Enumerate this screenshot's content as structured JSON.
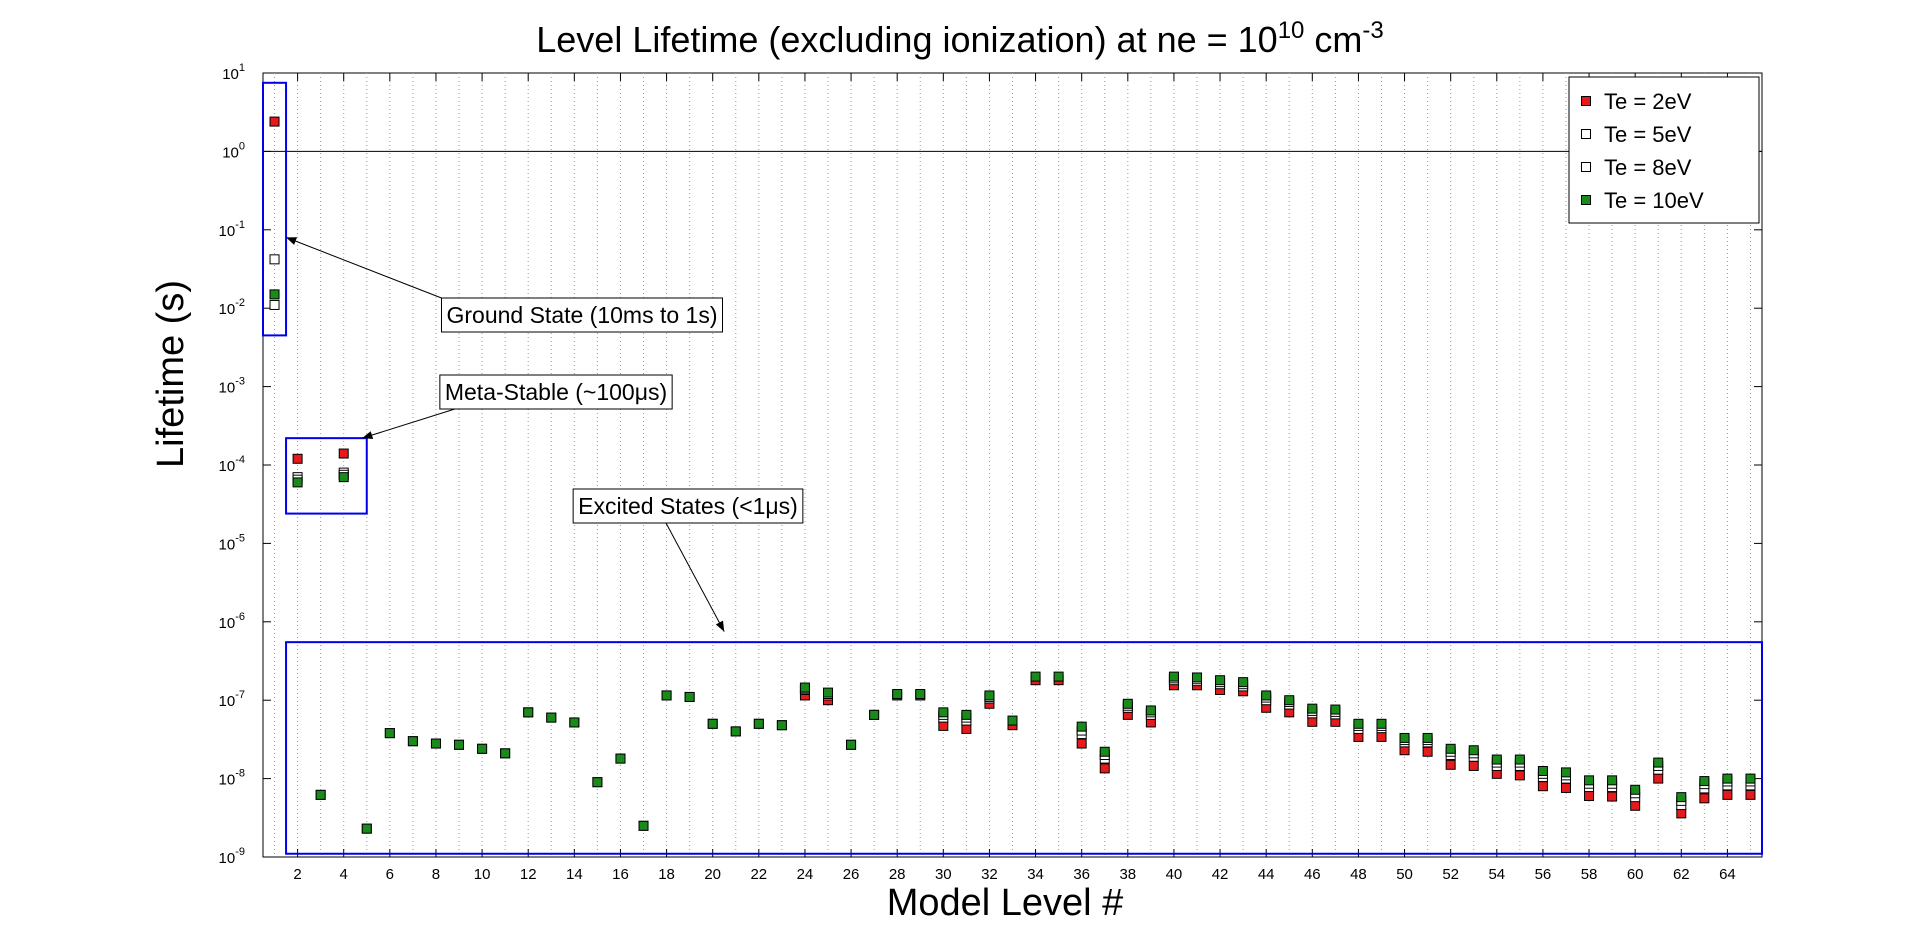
{
  "chart_data": {
    "type": "scatter",
    "title": {
      "prefix": "Level Lifetime (excluding ionization) at ne = 10",
      "exponent": "10",
      "units_prefix": " cm",
      "units_exponent": "-3"
    },
    "xlabel": "Model Level #",
    "ylabel": "Lifetime (s)",
    "xlim": [
      0.5,
      65.5
    ],
    "ylim": [
      1e-09,
      10
    ],
    "y_scale": "log",
    "x_ticks": [
      2,
      4,
      6,
      8,
      10,
      12,
      14,
      16,
      18,
      20,
      22,
      24,
      26,
      28,
      30,
      32,
      34,
      36,
      38,
      40,
      42,
      44,
      46,
      48,
      50,
      52,
      54,
      56,
      58,
      60,
      62,
      64
    ],
    "x_tick_labels": [
      "2",
      "4",
      "6",
      "8",
      "10",
      "12",
      "14",
      "16",
      "18",
      "20",
      "22",
      "24",
      "26",
      "28",
      "30",
      "32",
      "34",
      "36",
      "38",
      "40",
      "42",
      "44",
      "46",
      "48",
      "50",
      "52",
      "54",
      "56",
      "58",
      "60",
      "62",
      "64"
    ],
    "y_ticks": [
      {
        "base": "10",
        "exp": "1",
        "value": 10
      },
      {
        "base": "10",
        "exp": "0",
        "value": 1
      },
      {
        "base": "10",
        "exp": "-1",
        "value": 0.1
      },
      {
        "base": "10",
        "exp": "-2",
        "value": 0.01
      },
      {
        "base": "10",
        "exp": "-3",
        "value": 0.001
      },
      {
        "base": "10",
        "exp": "-4",
        "value": 0.0001
      },
      {
        "base": "10",
        "exp": "-5",
        "value": 1e-05
      },
      {
        "base": "10",
        "exp": "-6",
        "value": 1e-06
      },
      {
        "base": "10",
        "exp": "-7",
        "value": 1e-07
      },
      {
        "base": "10",
        "exp": "-8",
        "value": 1e-08
      },
      {
        "base": "10",
        "exp": "-9",
        "value": 1e-09
      }
    ],
    "grid": "x-dotted",
    "reference_line_y": 1,
    "legend_position": "top-right",
    "series": [
      {
        "name": "Te = 2eV",
        "color": "#e41a1c",
        "x": [
          1,
          2,
          3,
          4,
          5,
          6,
          7,
          8,
          9,
          10,
          11,
          12,
          13,
          14,
          15,
          16,
          17,
          18,
          19,
          20,
          21,
          22,
          23,
          24,
          25,
          26,
          27,
          28,
          29,
          30,
          31,
          32,
          33,
          34,
          35,
          36,
          37,
          38,
          39,
          40,
          41,
          42,
          43,
          44,
          45,
          46,
          47,
          48,
          49,
          50,
          51,
          52,
          53,
          54,
          55,
          56,
          57,
          58,
          59,
          60,
          61,
          62,
          63,
          64,
          65
        ],
        "y": [
          2.4,
          0.00012,
          6.2e-09,
          0.00014,
          2.3e-09,
          3.8e-08,
          3e-08,
          2.8e-08,
          2.7e-08,
          2.4e-08,
          2.1e-08,
          7e-08,
          6e-08,
          5.2e-08,
          9e-09,
          1.8e-08,
          2.5e-09,
          1.15e-07,
          1.1e-07,
          5e-08,
          4e-08,
          5e-08,
          4.8e-08,
          1.15e-07,
          1e-07,
          2.7e-08,
          6.5e-08,
          1.15e-07,
          1.15e-07,
          4.7e-08,
          4.3e-08,
          9e-08,
          4.8e-08,
          1.8e-07,
          1.8e-07,
          2.8e-08,
          1.35e-08,
          6.5e-08,
          5.2e-08,
          1.55e-07,
          1.55e-07,
          1.35e-07,
          1.3e-07,
          8e-08,
          7e-08,
          5.3e-08,
          5.3e-08,
          3.4e-08,
          3.4e-08,
          2.3e-08,
          2.2e-08,
          1.5e-08,
          1.45e-08,
          1.15e-08,
          1.1e-08,
          8e-09,
          7.6e-09,
          6e-09,
          5.9e-09,
          4.5e-09,
          1e-08,
          3.6e-09,
          5.6e-09,
          6.2e-09,
          6.2e-09
        ]
      },
      {
        "name": "Te = 5eV",
        "color": "#ffffff",
        "x": [
          1,
          2,
          4,
          24,
          25,
          30,
          31,
          32,
          36,
          37,
          38,
          39,
          40,
          41,
          42,
          43,
          44,
          45,
          46,
          47,
          48,
          49,
          50,
          51,
          52,
          53,
          54,
          55,
          56,
          57,
          58,
          59,
          60,
          61,
          62,
          63,
          64,
          65
        ],
        "y": [
          0.042,
          7e-05,
          8e-05,
          1.35e-07,
          1.15e-07,
          6e-08,
          5.5e-08,
          1.05e-07,
          3.7e-08,
          1.8e-08,
          8e-08,
          6.5e-08,
          1.8e-07,
          1.75e-07,
          1.6e-07,
          1.5e-07,
          1e-07,
          8.8e-08,
          6.8e-08,
          6.6e-08,
          4.3e-08,
          4.4e-08,
          2.9e-08,
          2.9e-08,
          2e-08,
          1.9e-08,
          1.45e-08,
          1.45e-08,
          1.05e-08,
          1e-08,
          7.8e-09,
          7.8e-09,
          5.8e-09,
          1.3e-08,
          4.6e-09,
          7.5e-09,
          8.2e-09,
          8.2e-09
        ]
      },
      {
        "name": "Te = 8eV",
        "color": "#ffffff",
        "x": [
          1,
          2,
          4,
          24,
          25,
          30,
          31,
          32,
          36,
          37,
          38,
          39,
          40,
          41,
          42,
          43,
          44,
          45,
          46,
          47,
          48,
          49,
          50,
          51,
          52,
          53,
          54,
          55,
          56,
          57,
          58,
          59,
          60,
          61,
          62,
          63,
          64,
          65
        ],
        "y": [
          0.011,
          6.5e-05,
          7.5e-05,
          1.4e-07,
          1.2e-07,
          6.5e-08,
          6e-08,
          1.1e-07,
          4.1e-08,
          2e-08,
          8.5e-08,
          7e-08,
          1.9e-07,
          1.85e-07,
          1.7e-07,
          1.6e-07,
          1.08e-07,
          9.5e-08,
          7.3e-08,
          7.1e-08,
          4.7e-08,
          4.7e-08,
          3.1e-08,
          3.1e-08,
          2.2e-08,
          2.1e-08,
          1.6e-08,
          1.6e-08,
          1.15e-08,
          1.1e-08,
          8.6e-09,
          8.6e-09,
          6.5e-09,
          1.45e-08,
          5.2e-09,
          8.5e-09,
          9.2e-09,
          9.2e-09
        ]
      },
      {
        "name": "Te = 10eV",
        "color": "#1a8a1a",
        "x": [
          1,
          2,
          3,
          4,
          5,
          6,
          7,
          8,
          9,
          10,
          11,
          12,
          13,
          14,
          15,
          16,
          17,
          18,
          19,
          20,
          21,
          22,
          23,
          24,
          25,
          26,
          27,
          28,
          29,
          30,
          31,
          32,
          33,
          34,
          35,
          36,
          37,
          38,
          39,
          40,
          41,
          42,
          43,
          44,
          45,
          46,
          47,
          48,
          49,
          50,
          51,
          52,
          53,
          54,
          55,
          56,
          57,
          58,
          59,
          60,
          61,
          62,
          63,
          64,
          65
        ],
        "y": [
          0.015,
          6e-05,
          6.2e-09,
          7e-05,
          2.3e-09,
          3.8e-08,
          3e-08,
          2.8e-08,
          2.7e-08,
          2.4e-08,
          2.1e-08,
          7e-08,
          6e-08,
          5.2e-08,
          9e-09,
          1.8e-08,
          2.5e-09,
          1.15e-07,
          1.1e-07,
          5e-08,
          4e-08,
          5e-08,
          4.8e-08,
          1.45e-07,
          1.25e-07,
          2.7e-08,
          6.5e-08,
          1.2e-07,
          1.2e-07,
          7e-08,
          6.5e-08,
          1.15e-07,
          5.5e-08,
          2e-07,
          2e-07,
          4.6e-08,
          2.2e-08,
          9e-08,
          7.4e-08,
          2e-07,
          1.95e-07,
          1.8e-07,
          1.7e-07,
          1.15e-07,
          1e-07,
          7.8e-08,
          7.6e-08,
          5e-08,
          5e-08,
          3.3e-08,
          3.3e-08,
          2.4e-08,
          2.3e-08,
          1.75e-08,
          1.75e-08,
          1.25e-08,
          1.2e-08,
          9.5e-09,
          9.5e-09,
          7.2e-09,
          1.6e-08,
          5.8e-09,
          9.3e-09,
          1e-08,
          1e-08
        ]
      }
    ],
    "annotations": [
      {
        "name": "ground-state",
        "text": "Ground State (10ms to 1s)",
        "box_x": [
          0.5,
          1.5
        ],
        "box_y": [
          0.0045,
          7.5
        ],
        "arrow_to": [
          1.5,
          0.08
        ]
      },
      {
        "name": "meta-stable",
        "text": "Meta-Stable (~100μs)",
        "box_x": [
          1.5,
          5.0
        ],
        "box_y": [
          2.4e-05,
          0.00022
        ],
        "arrow_to": [
          4.8,
          0.00022
        ]
      },
      {
        "name": "excited-states",
        "text": "Excited States (<1μs)",
        "box_x": [
          1.5,
          65.5
        ],
        "box_y": [
          1.1e-09,
          5.5e-07
        ],
        "arrow_to": [
          20.5,
          7.5e-07
        ]
      }
    ]
  }
}
